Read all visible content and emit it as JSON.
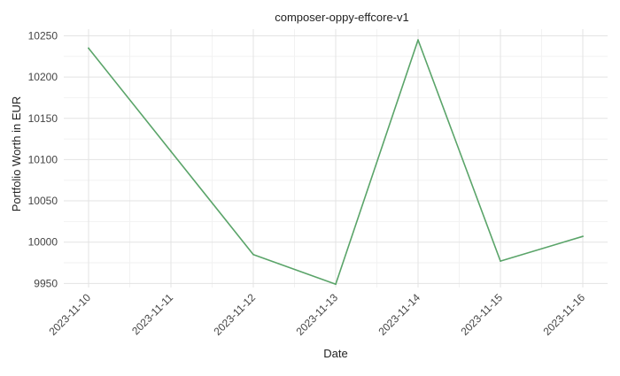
{
  "chart_data": {
    "type": "line",
    "title": "composer-oppy-effcore-v1",
    "xlabel": "Date",
    "ylabel": "Portfolio Worth in EUR",
    "x": [
      "2023-11-10",
      "2023-11-11",
      "2023-11-12",
      "2023-11-13",
      "2023-11-14",
      "2023-11-15",
      "2023-11-16"
    ],
    "series": [
      {
        "values": [
          10235,
          10110,
          9985,
          9949,
          10245,
          9977,
          10007
        ],
        "color": "#5aa469"
      }
    ],
    "yticks": [
      9950,
      10000,
      10050,
      10100,
      10150,
      10200,
      10250
    ],
    "ylim": [
      9945,
      10258
    ],
    "grid": true,
    "legend": "none"
  }
}
